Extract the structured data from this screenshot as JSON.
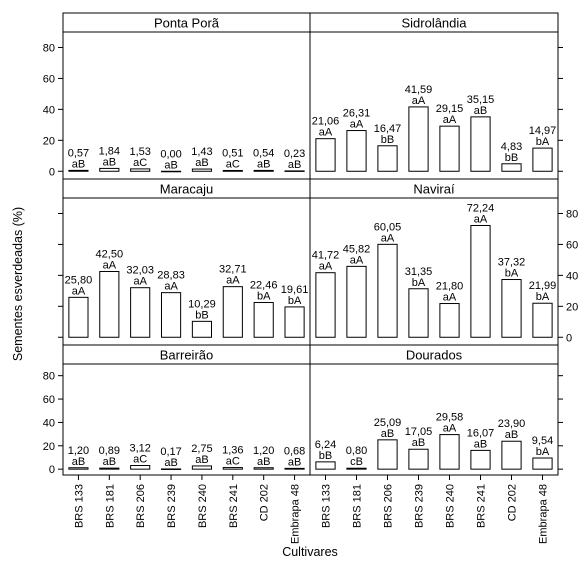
{
  "ylabel": "Sementes esverdeadas (%)",
  "xlabel": "Cultivares",
  "y_ticks": [
    "0",
    "20",
    "40",
    "60",
    "80"
  ],
  "chart_data": {
    "type": "bar",
    "ylim": [
      -5,
      90
    ],
    "categories": [
      "BRS 133",
      "BRS 181",
      "BRS 206",
      "BRS 239",
      "BRS 240",
      "BRS 241",
      "CD 202",
      "Embrapa 48"
    ],
    "panels": [
      {
        "title": "Ponta Porã",
        "values": [
          0.57,
          1.84,
          1.53,
          0.0,
          1.43,
          0.51,
          0.54,
          0.23
        ],
        "value_labels": [
          "0,57",
          "1,84",
          "1,53",
          "0,00",
          "1,43",
          "0,51",
          "0,54",
          "0,23"
        ],
        "letters": [
          "aB",
          "aB",
          "aC",
          "aB",
          "aB",
          "aC",
          "aB",
          "aB"
        ]
      },
      {
        "title": "Sidrolândia",
        "values": [
          21.06,
          26.31,
          16.47,
          41.59,
          29.15,
          35.15,
          4.83,
          14.97
        ],
        "value_labels": [
          "21,06",
          "26,31",
          "16,47",
          "41,59",
          "29,15",
          "35,15",
          "4,83",
          "14,97"
        ],
        "letters": [
          "aA",
          "aA",
          "bB",
          "aA",
          "aA",
          "aB",
          "bB",
          "bA"
        ]
      },
      {
        "title": "Maracaju",
        "values": [
          25.8,
          42.5,
          32.03,
          28.83,
          10.29,
          32.71,
          22.46,
          19.61
        ],
        "value_labels": [
          "25,80",
          "42,50",
          "32,03",
          "28,83",
          "10,29",
          "32,71",
          "22,46",
          "19,61"
        ],
        "letters": [
          "aA",
          "aA",
          "aA",
          "aA",
          "bB",
          "aA",
          "bA",
          "bA"
        ]
      },
      {
        "title": "Naviraí",
        "values": [
          41.72,
          45.82,
          60.05,
          31.35,
          21.8,
          72.24,
          37.32,
          21.99
        ],
        "value_labels": [
          "41,72",
          "45,82",
          "60,05",
          "31,35",
          "21,80",
          "72,24",
          "37,32",
          "21,99"
        ],
        "letters": [
          "aA",
          "aA",
          "aA",
          "bA",
          "aA",
          "aA",
          "bA",
          "bA"
        ]
      },
      {
        "title": "Barreirão",
        "values": [
          1.2,
          0.89,
          3.12,
          0.17,
          2.75,
          1.36,
          1.2,
          0.68
        ],
        "value_labels": [
          "1,20",
          "0,89",
          "3,12",
          "0,17",
          "2,75",
          "1,36",
          "1,20",
          "0,68"
        ],
        "letters": [
          "aB",
          "aB",
          "aC",
          "aB",
          "aB",
          "aC",
          "aB",
          "aB"
        ]
      },
      {
        "title": "Dourados",
        "values": [
          6.24,
          0.8,
          25.09,
          17.05,
          29.58,
          16.07,
          23.9,
          9.54
        ],
        "value_labels": [
          "6,24",
          "0,80",
          "25,09",
          "17,05",
          "29,58",
          "16,07",
          "23,90",
          "9,54"
        ],
        "letters": [
          "bB",
          "cB",
          "aB",
          "aB",
          "aA",
          "aB",
          "aB",
          "bA"
        ]
      }
    ]
  }
}
